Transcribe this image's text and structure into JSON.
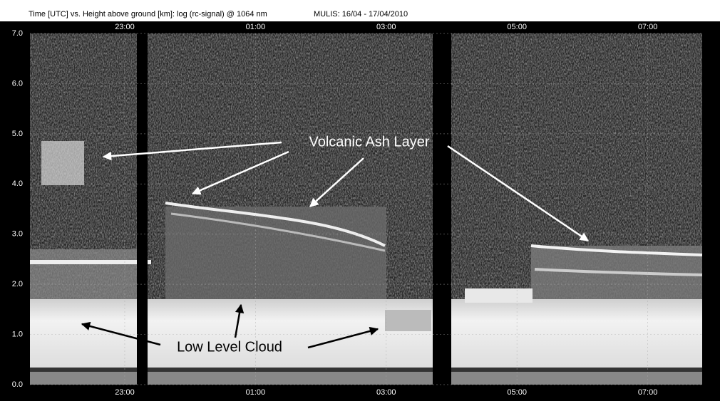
{
  "chart_data": {
    "type": "heatmap",
    "title": "Time [UTC] vs. Height above ground [km]: log (rc-signal) @ 1064 nm",
    "subtitle": "MULIS: 16/04 - 17/04/2010",
    "xlim": [
      "21:33",
      "07:50"
    ],
    "xticks": [
      "23:00",
      "01:00",
      "03:00",
      "05:00",
      "07:00"
    ],
    "ylim": [
      0,
      7
    ],
    "yticks": [
      {
        "value": 0,
        "label": "0.0"
      },
      {
        "value": 1,
        "label": "1.0"
      },
      {
        "value": 2,
        "label": "2.0"
      },
      {
        "value": 3,
        "label": "3.0"
      },
      {
        "value": 4,
        "label": "4.0"
      },
      {
        "value": 5,
        "label": "5.0"
      },
      {
        "value": 6,
        "label": "6.0"
      },
      {
        "value": 7,
        "label": "7.0"
      }
    ],
    "grid": true,
    "annotations": [
      "Volcanic Ash Layer",
      "Low Level Cloud"
    ]
  }
}
